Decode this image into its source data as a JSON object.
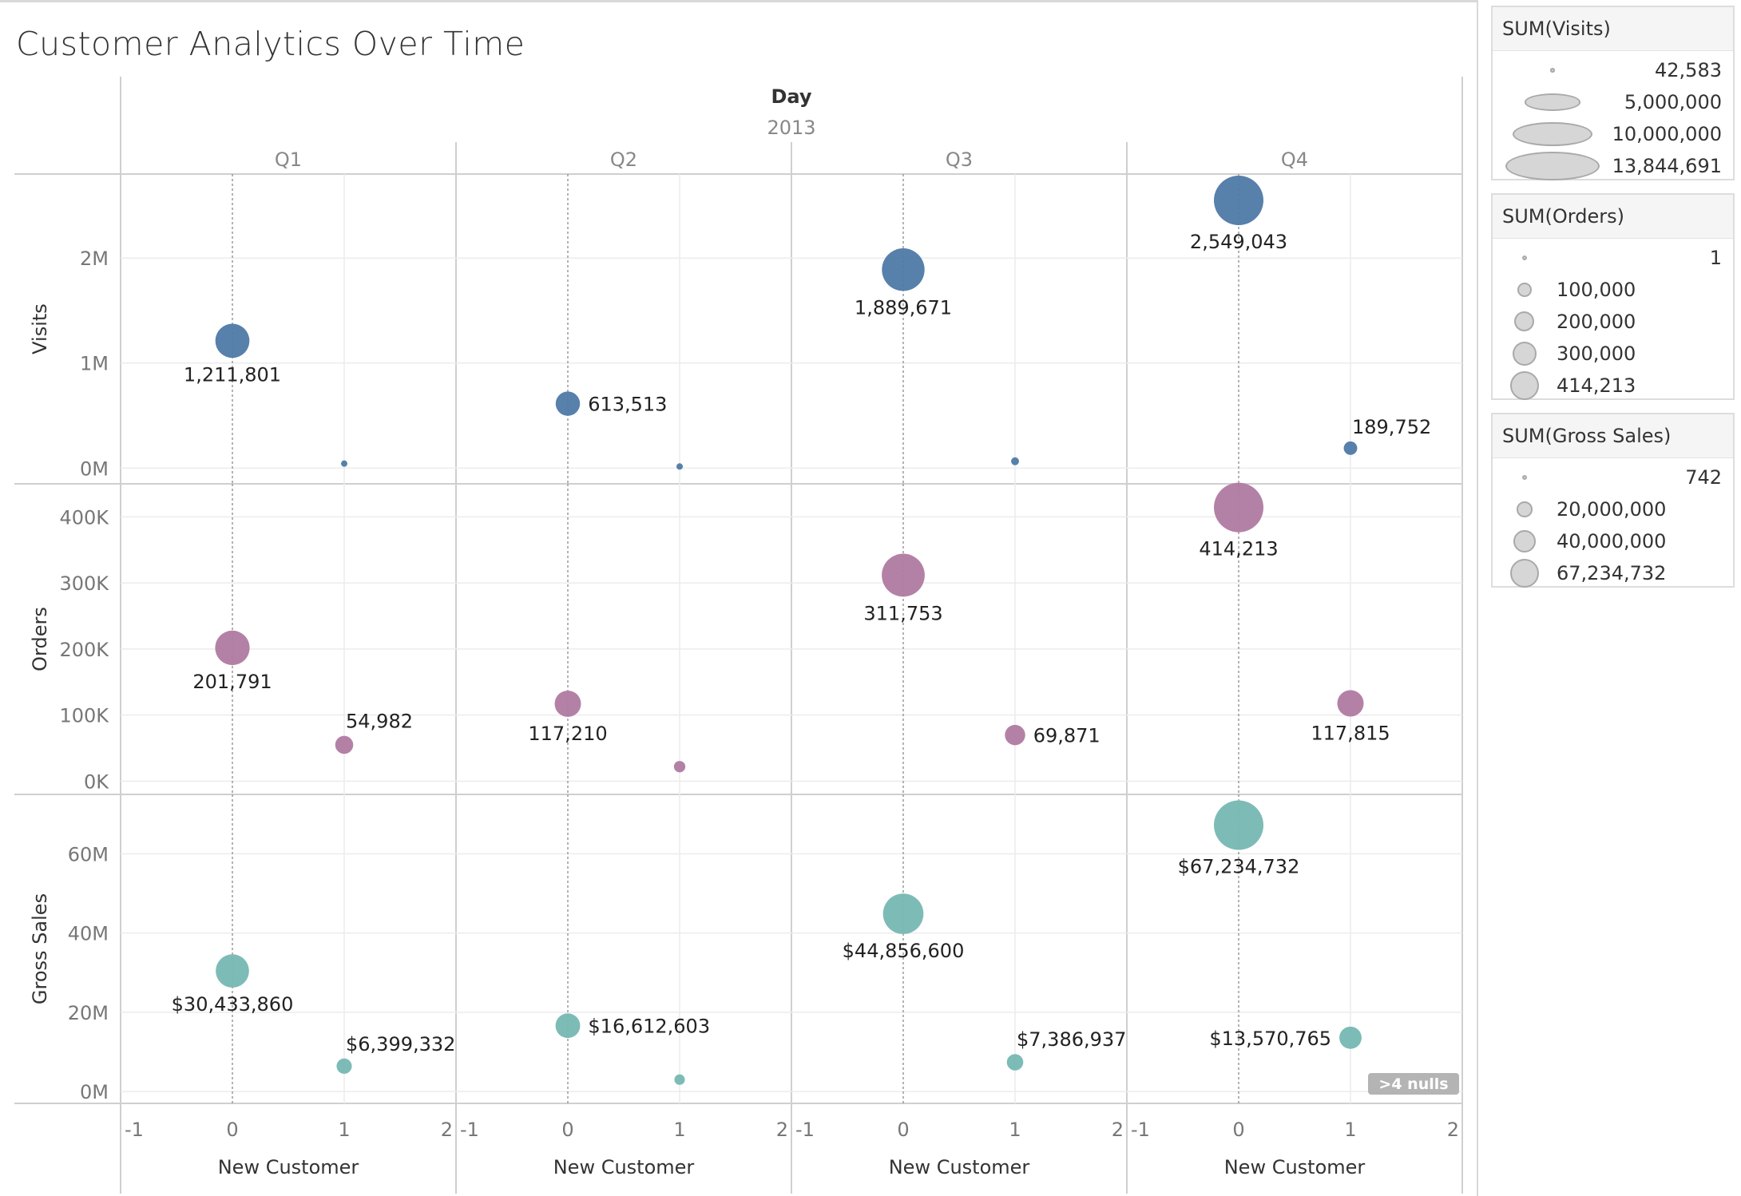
{
  "title": "Customer Analytics Over Time",
  "chart_data": {
    "type": "scatter",
    "column_header": "Day",
    "year": "2013",
    "quarters": [
      "Q1",
      "Q2",
      "Q3",
      "Q4"
    ],
    "xlabel": "New Customer",
    "x_range": [
      -1,
      2
    ],
    "x_ticks": [
      "-1",
      "0",
      "1",
      "2"
    ],
    "null_indicator": ">4 nulls",
    "colors": {
      "Visits": "#4e79a7",
      "Orders": "#b07aa1",
      "Gross Sales": "#76b7b2"
    },
    "rows": [
      {
        "measure": "Visits",
        "ylabel": "Visits",
        "ylim": [
          -150000,
          2800000
        ],
        "ticks": [
          {
            "value": 0,
            "label": "0M"
          },
          {
            "value": 1000000,
            "label": "1M"
          },
          {
            "value": 2000000,
            "label": "2M"
          }
        ],
        "points": [
          {
            "quarter": "Q1",
            "x": 0,
            "y": 1211801,
            "label": "1,211,801",
            "label_pos": "below"
          },
          {
            "quarter": "Q1",
            "x": 1,
            "y": 42583,
            "label": "",
            "label_pos": "none"
          },
          {
            "quarter": "Q2",
            "x": 0,
            "y": 613513,
            "label": "613,513",
            "label_pos": "right"
          },
          {
            "quarter": "Q2",
            "x": 1,
            "y": 15000,
            "label": "",
            "label_pos": "none"
          },
          {
            "quarter": "Q3",
            "x": 0,
            "y": 1889671,
            "label": "1,889,671",
            "label_pos": "below"
          },
          {
            "quarter": "Q3",
            "x": 1,
            "y": 65000,
            "label": "",
            "label_pos": "none"
          },
          {
            "quarter": "Q4",
            "x": 0,
            "y": 2549043,
            "label": "2,549,043",
            "label_pos": "below"
          },
          {
            "quarter": "Q4",
            "x": 1,
            "y": 189752,
            "label": "189,752",
            "label_pos": "above"
          }
        ]
      },
      {
        "measure": "Orders",
        "ylabel": "Orders",
        "ylim": [
          -20000,
          450000
        ],
        "ticks": [
          {
            "value": 0,
            "label": "0K"
          },
          {
            "value": 100000,
            "label": "100K"
          },
          {
            "value": 200000,
            "label": "200K"
          },
          {
            "value": 300000,
            "label": "300K"
          },
          {
            "value": 400000,
            "label": "400K"
          }
        ],
        "points": [
          {
            "quarter": "Q1",
            "x": 0,
            "y": 201791,
            "label": "201,791",
            "label_pos": "below"
          },
          {
            "quarter": "Q1",
            "x": 1,
            "y": 54982,
            "label": "54,982",
            "label_pos": "above"
          },
          {
            "quarter": "Q2",
            "x": 0,
            "y": 117210,
            "label": "117,210",
            "label_pos": "below"
          },
          {
            "quarter": "Q2",
            "x": 1,
            "y": 22000,
            "label": "",
            "label_pos": "none"
          },
          {
            "quarter": "Q3",
            "x": 0,
            "y": 311753,
            "label": "311,753",
            "label_pos": "below"
          },
          {
            "quarter": "Q3",
            "x": 1,
            "y": 69871,
            "label": "69,871",
            "label_pos": "right"
          },
          {
            "quarter": "Q4",
            "x": 0,
            "y": 414213,
            "label": "414,213",
            "label_pos": "below"
          },
          {
            "quarter": "Q4",
            "x": 1,
            "y": 117815,
            "label": "117,815",
            "label_pos": "below"
          }
        ]
      },
      {
        "measure": "Gross Sales",
        "ylabel": "Gross Sales",
        "ylim": [
          -3000000,
          75000000
        ],
        "ticks": [
          {
            "value": 0,
            "label": "0M"
          },
          {
            "value": 20000000,
            "label": "20M"
          },
          {
            "value": 40000000,
            "label": "40M"
          },
          {
            "value": 60000000,
            "label": "60M"
          }
        ],
        "points": [
          {
            "quarter": "Q1",
            "x": 0,
            "y": 30433860,
            "label": "$30,433,860",
            "label_pos": "below"
          },
          {
            "quarter": "Q1",
            "x": 1,
            "y": 6399332,
            "label": "$6,399,332",
            "label_pos": "above"
          },
          {
            "quarter": "Q2",
            "x": 0,
            "y": 16612603,
            "label": "$16,612,603",
            "label_pos": "right"
          },
          {
            "quarter": "Q2",
            "x": 1,
            "y": 3000000,
            "label": "",
            "label_pos": "none"
          },
          {
            "quarter": "Q3",
            "x": 0,
            "y": 44856600,
            "label": "$44,856,600",
            "label_pos": "below"
          },
          {
            "quarter": "Q3",
            "x": 1,
            "y": 7386937,
            "label": "$7,386,937",
            "label_pos": "above"
          },
          {
            "quarter": "Q4",
            "x": 0,
            "y": 67234732,
            "label": "$67,234,732",
            "label_pos": "below"
          },
          {
            "quarter": "Q4",
            "x": 1,
            "y": 13570765,
            "label": "$13,570,765",
            "label_pos": "left"
          }
        ]
      }
    ]
  },
  "legends": [
    {
      "title": "SUM(Visits)",
      "align": "right",
      "max": 13844691,
      "entries": [
        {
          "value": 42583,
          "label": "42,583"
        },
        {
          "value": 5000000,
          "label": "5,000,000"
        },
        {
          "value": 10000000,
          "label": "10,000,000"
        },
        {
          "value": 13844691,
          "label": "13,844,691"
        }
      ]
    },
    {
      "title": "SUM(Orders)",
      "align": "mixed",
      "max": 414213,
      "entries": [
        {
          "value": 1,
          "label": "1"
        },
        {
          "value": 100000,
          "label": "100,000"
        },
        {
          "value": 200000,
          "label": "200,000"
        },
        {
          "value": 300000,
          "label": "300,000"
        },
        {
          "value": 414213,
          "label": "414,213"
        }
      ]
    },
    {
      "title": "SUM(Gross Sales)",
      "align": "mixed",
      "max": 67234732,
      "entries": [
        {
          "value": 742,
          "label": "742"
        },
        {
          "value": 20000000,
          "label": "20,000,000"
        },
        {
          "value": 40000000,
          "label": "40,000,000"
        },
        {
          "value": 67234732,
          "label": "67,234,732"
        }
      ]
    }
  ]
}
